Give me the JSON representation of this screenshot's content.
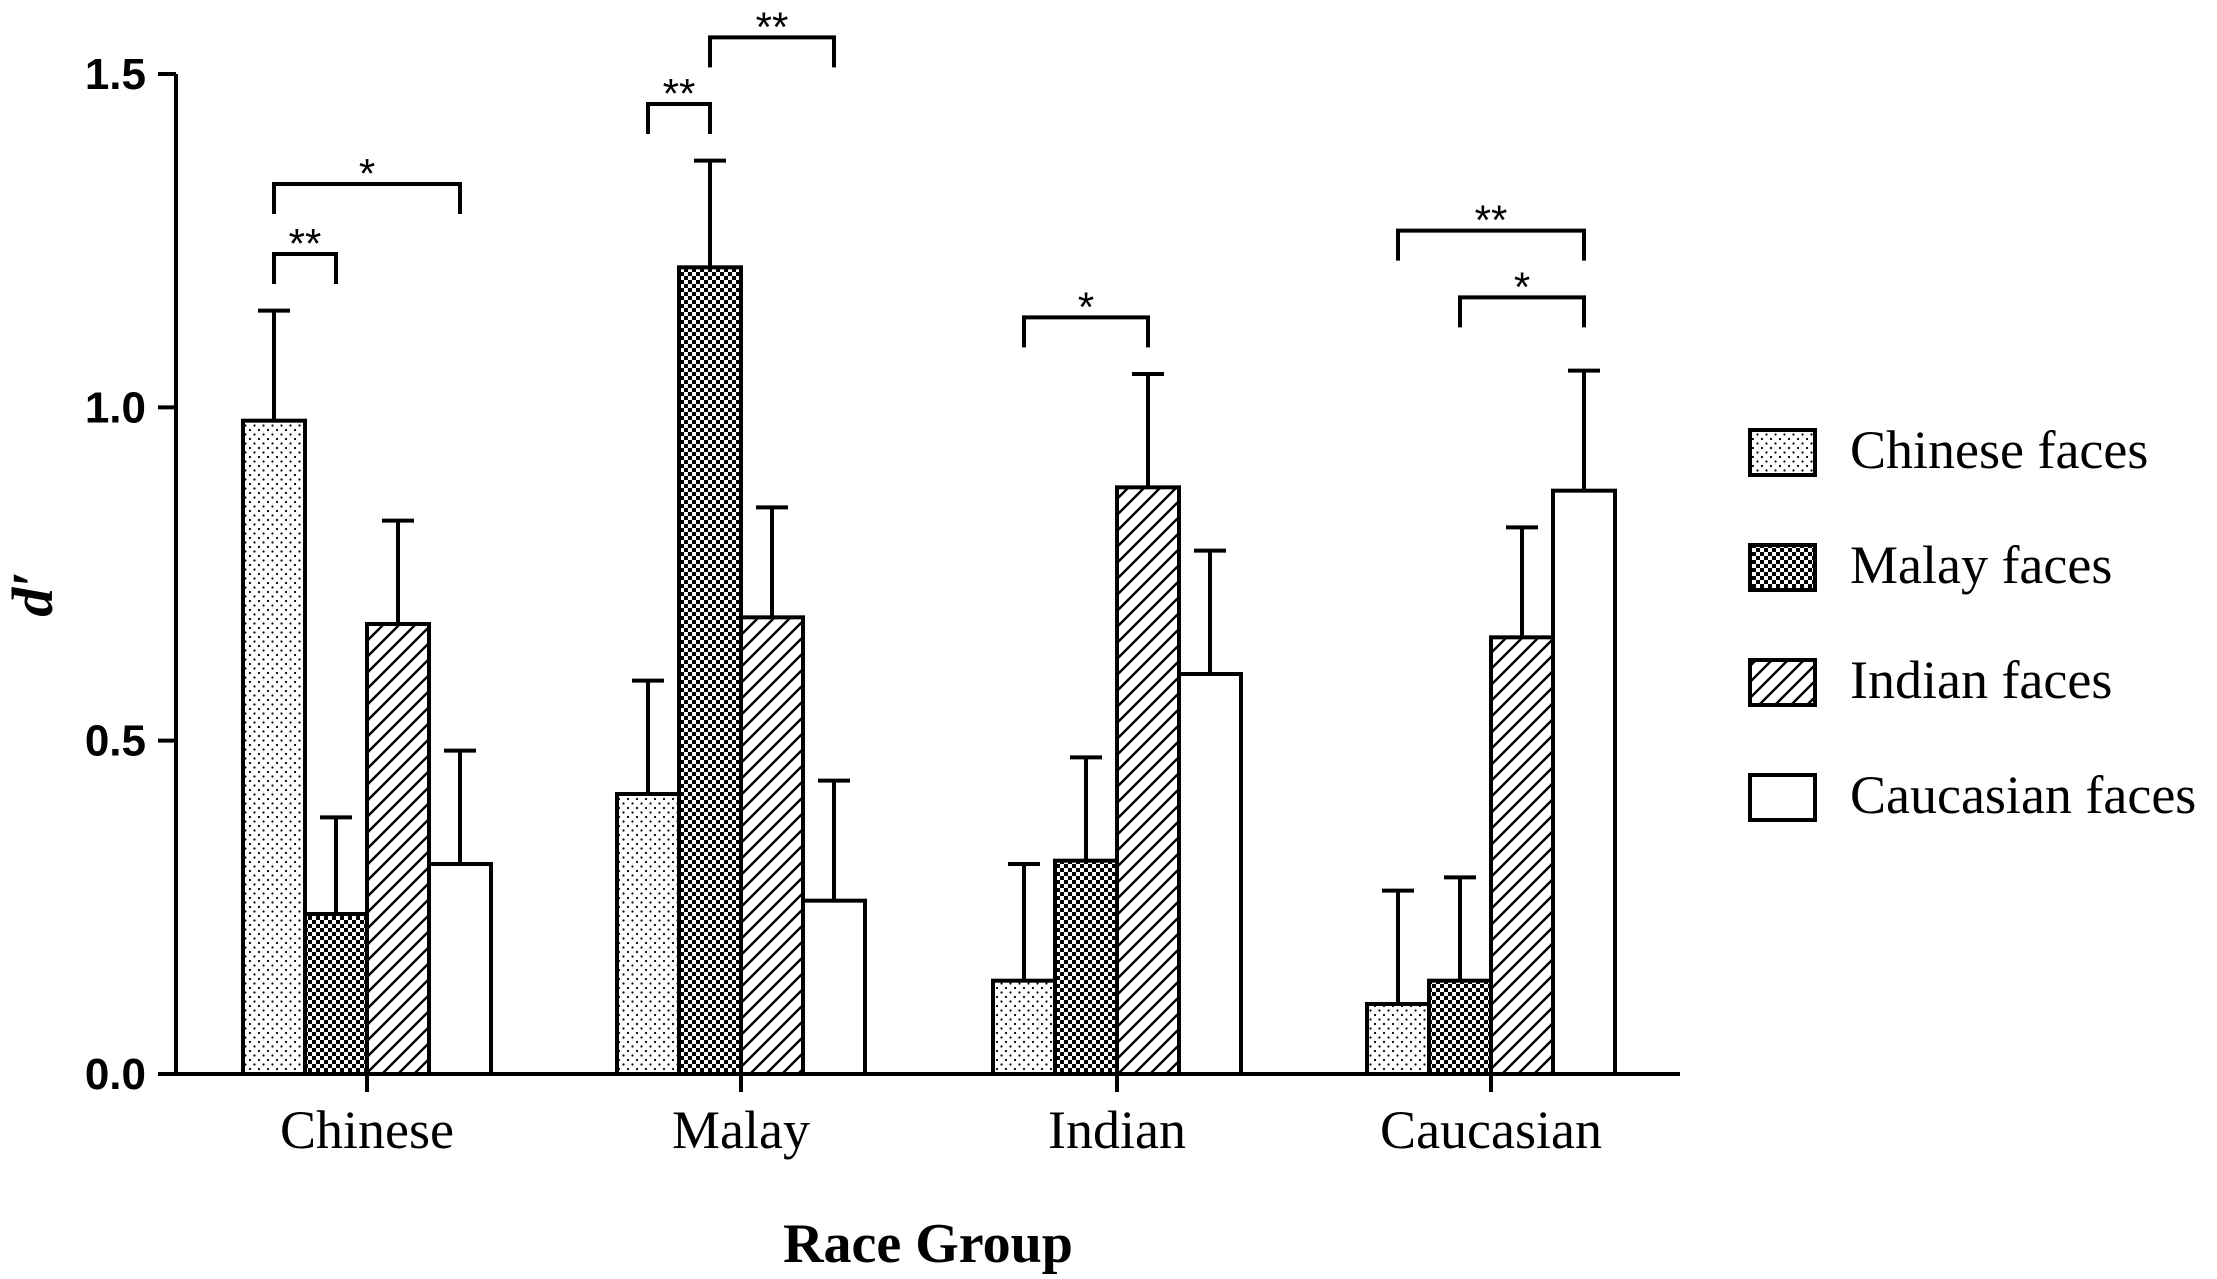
{
  "chart_data": {
    "type": "bar",
    "title": "",
    "xlabel": "Race Group",
    "ylabel": "d′",
    "ylim": [
      0,
      1.5
    ],
    "yticks": [
      "0.0",
      "0.5",
      "1.0",
      "1.5"
    ],
    "ytick_values": [
      0,
      0.5,
      1.0,
      1.5
    ],
    "categories": [
      "Chinese",
      "Malay",
      "Indian",
      "Caucasian"
    ],
    "series": [
      {
        "name": "Chinese faces",
        "pattern": "dots",
        "values": [
          0.98,
          0.42,
          0.14,
          0.105
        ],
        "errors": [
          0.165,
          0.17,
          0.175,
          0.17
        ]
      },
      {
        "name": "Malay faces",
        "pattern": "checker",
        "values": [
          0.24,
          1.21,
          0.32,
          0.14
        ],
        "errors": [
          0.145,
          0.16,
          0.155,
          0.155
        ]
      },
      {
        "name": "Indian faces",
        "pattern": "hatch",
        "values": [
          0.675,
          0.685,
          0.88,
          0.655
        ],
        "errors": [
          0.155,
          0.165,
          0.17,
          0.165
        ]
      },
      {
        "name": "Caucasian faces",
        "pattern": "none",
        "values": [
          0.315,
          0.26,
          0.6,
          0.875
        ],
        "errors": [
          0.17,
          0.18,
          0.185,
          0.18
        ]
      }
    ],
    "significance": [
      {
        "group": 0,
        "from": 0,
        "to": 1,
        "label": "**",
        "y": 1.23
      },
      {
        "group": 0,
        "from": 0,
        "to": 3,
        "label": "*",
        "y": 1.335
      },
      {
        "group": 1,
        "from": 0,
        "to": 1,
        "label": "**",
        "y": 1.455
      },
      {
        "group": 1,
        "from": 1,
        "to": 3,
        "label": "**",
        "y": 1.555
      },
      {
        "group": 2,
        "from": 0,
        "to": 2,
        "label": "*",
        "y": 1.135
      },
      {
        "group": 3,
        "from": 0,
        "to": 3,
        "label": "**",
        "y": 1.265
      },
      {
        "group": 3,
        "from": 1,
        "to": 3,
        "label": "*",
        "y": 1.165
      }
    ],
    "legend_position": "right",
    "grid": false
  }
}
